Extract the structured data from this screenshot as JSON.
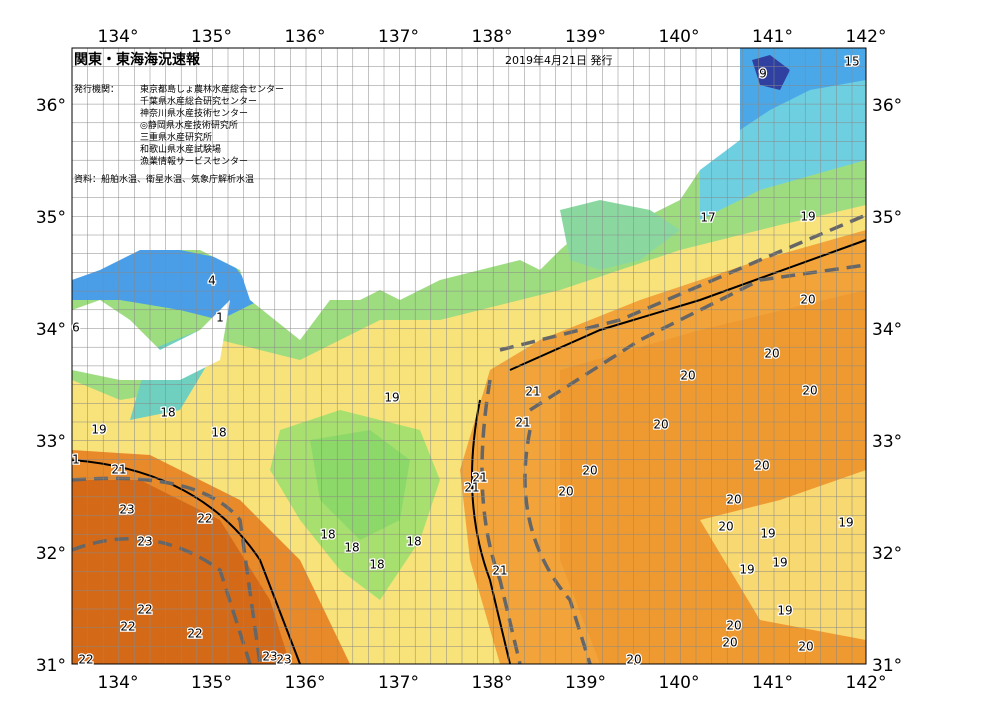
{
  "header": {
    "title": "関東・東海海況速報",
    "date": "2019年4月21日 発行"
  },
  "issuers": {
    "label": "発行機関：",
    "names": [
      "東京都島しょ農林水産総合センター",
      "千葉県水産総合研究センター",
      "神奈川県水産技術センター",
      "◎静岡県水産技術研究所",
      "三重県水産研究所",
      "和歌山県水産試験場",
      "漁業情報サービスセンター"
    ]
  },
  "source": "資料：船舶水温、衛星水温、気象庁解析水温",
  "axes": {
    "lon": [
      "134°",
      "135°",
      "136°",
      "137°",
      "138°",
      "139°",
      "140°",
      "141°",
      "142°"
    ],
    "lat": [
      "36°",
      "35°",
      "34°",
      "33°",
      "32°",
      "31°"
    ]
  },
  "contour_labels": [
    "15",
    "9",
    "17",
    "19",
    "20",
    "20",
    "20",
    "20",
    "20",
    "20",
    "20",
    "20",
    "20",
    "20",
    "19",
    "19",
    "19",
    "19",
    "19",
    "20",
    "20",
    "20",
    "20",
    "21",
    "21",
    "21",
    "21",
    "21",
    "19",
    "18",
    "18",
    "18",
    "18",
    "18",
    "18",
    "19",
    "21",
    "23",
    "22",
    "23",
    "22",
    "22",
    "22",
    "23",
    "23",
    "4",
    "1",
    "6",
    "1",
    "22"
  ]
}
